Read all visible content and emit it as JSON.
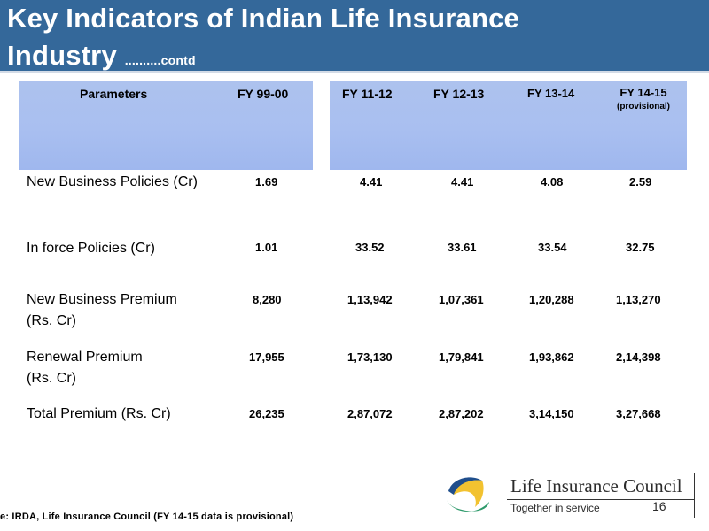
{
  "slide": {
    "title_line1": "Key Indicators of Indian Life Insurance",
    "title_line2": "Industry",
    "title_suffix": "..........contd"
  },
  "table": {
    "headers": {
      "parameters": "Parameters",
      "fy9900": "FY 99-00",
      "fy1112": "FY 11-12",
      "fy1213": "FY 12-13",
      "fy1314": "FY 13-14",
      "fy1415": "FY 14-15",
      "fy1415_note": "(provisional)"
    },
    "rows": [
      {
        "label": "New Business Policies (Cr)",
        "fy9900": "1.69",
        "fy1112": "4.41",
        "fy1213": "4.41",
        "fy1314": "4.08",
        "fy1415": "2.59"
      },
      {
        "label": "In force Policies (Cr)",
        "fy9900": "1.01",
        "fy1112": "33.52",
        "fy1213": "33.61",
        "fy1314": "33.54",
        "fy1415": "32.75"
      },
      {
        "label_line1": "New Business Premium",
        "label_line2": "(Rs. Cr)",
        "fy9900": "8,280",
        "fy1112": "1,13,942",
        "fy1213": "1,07,361",
        "fy1314": "1,20,288",
        "fy1415": "1,13,270"
      },
      {
        "label_line1": "Renewal Premium",
        "label_line2": "(Rs. Cr)",
        "fy9900": "17,955",
        "fy1112": "1,73,130",
        "fy1213": "1,79,841",
        "fy1314": "1,93,862",
        "fy1415": "2,14,398"
      },
      {
        "label": "Total Premium (Rs. Cr)",
        "fy9900": "26,235",
        "fy1112": "2,87,072",
        "fy1213": "2,87,202",
        "fy1314": "3,14,150",
        "fy1415": "3,27,668"
      }
    ]
  },
  "footer": {
    "source": "e:  IRDA,  Life Insurance Council (FY 14-15 data is provisional)"
  },
  "logo": {
    "name": "Life Insurance Council",
    "tagline": "Together in service",
    "page_number": "16",
    "colors": {
      "blue": "#1f4e8c",
      "yellow": "#f2c230",
      "green": "#2e9a6b"
    }
  }
}
